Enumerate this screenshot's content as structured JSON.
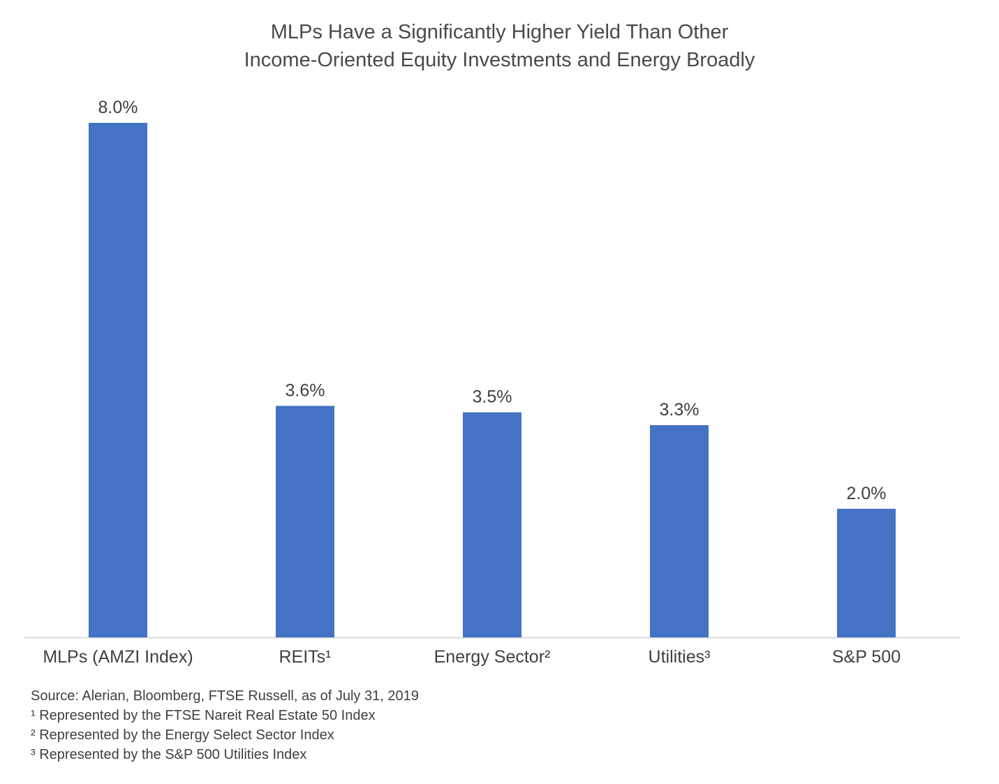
{
  "title": {
    "line1": "MLPs Have a Significantly Higher Yield Than Other",
    "line2": "Income-Oriented Equity Investments and Energy Broadly"
  },
  "chart_data": {
    "type": "bar",
    "title": "MLPs Have a Significantly Higher Yield Than Other Income-Oriented Equity Investments and Energy Broadly",
    "categories": [
      "MLPs (AMZI Index)",
      "REITs¹",
      "Energy Sector²",
      "Utilities³",
      "S&P 500"
    ],
    "values": [
      8.0,
      3.6,
      3.5,
      3.3,
      2.0
    ],
    "data_labels": [
      "8.0%",
      "3.6%",
      "3.5%",
      "3.3%",
      "2.0%"
    ],
    "xlabel": "",
    "ylabel": "",
    "ylim": [
      0,
      8.0
    ],
    "grid": false,
    "bar_color": "#4472C4",
    "axis_color": "#D9D9D9"
  },
  "footnotes": {
    "source": "Source: Alerian, Bloomberg, FTSE Russell, as of July 31, 2019",
    "note1": "¹ Represented by the FTSE Nareit Real Estate 50 Index",
    "note2": "² Represented by the Energy Select Sector Index",
    "note3": "³ Represented by the S&P 500 Utilities Index"
  }
}
